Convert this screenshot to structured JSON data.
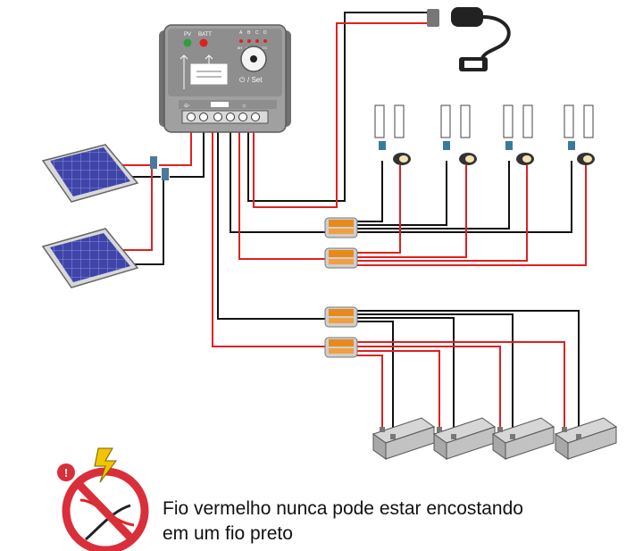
{
  "controller": {
    "indicators": {
      "pv": "PV",
      "batt": "BATT"
    },
    "load_modes": [
      "A",
      "B",
      "C",
      "D"
    ],
    "load_hours": [
      "8H",
      "4H",
      "2H",
      "T/C"
    ],
    "button_label": "/ Set",
    "terminal_labels": {
      "pv": "PV",
      "batt": "BATT",
      "load": "LOAD"
    }
  },
  "warning": {
    "line1": "Fio vermelho nunca pode estar encostando",
    "line2": "em um fio preto",
    "badge": "!"
  },
  "colors": {
    "wire_red": "#e02020",
    "wire_black": "#111111",
    "controller": "#9a9a9a",
    "connector": "#e8891c",
    "panel": "#3a3fa0",
    "warning_ring": "#d92f3a",
    "bolt": "#f2c300"
  }
}
